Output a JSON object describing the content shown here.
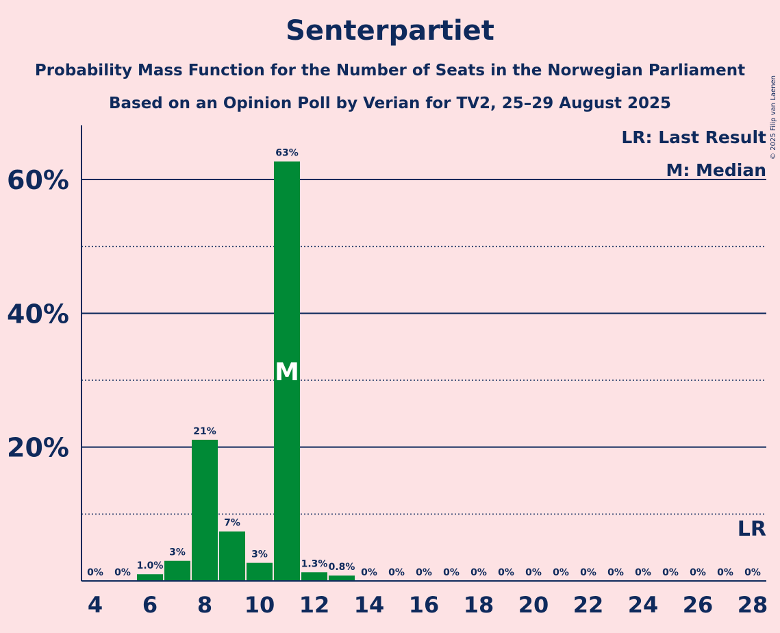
{
  "title": "Senterpartiet",
  "subtitle_1": "Probability Mass Function for the Number of Seats in the Norwegian Parliament",
  "subtitle_2": "Based on an Opinion Poll by Verian for TV2, 25–29 August 2025",
  "copyright": "© 2025 Filip van Laenen",
  "legend": {
    "last_result": "LR: Last Result",
    "median": "M: Median"
  },
  "colors": {
    "background": "#FDE2E4",
    "bar": "#008A36",
    "text": "#0F2A5C"
  },
  "chart_data": {
    "type": "bar",
    "x": [
      4,
      5,
      6,
      7,
      8,
      9,
      10,
      11,
      12,
      13,
      14,
      15,
      16,
      17,
      18,
      19,
      20,
      21,
      22,
      23,
      24,
      25,
      26,
      27,
      28
    ],
    "values": [
      0,
      0,
      1.0,
      3,
      21,
      7,
      3,
      63,
      1.3,
      0.8,
      0,
      0,
      0,
      0,
      0,
      0,
      0,
      0,
      0,
      0,
      0,
      0,
      0,
      0,
      0
    ],
    "bar_heights_estimated": [
      0,
      0,
      1.0,
      3.0,
      21.1,
      7.4,
      2.7,
      62.7,
      1.3,
      0.8,
      0,
      0,
      0,
      0,
      0,
      0,
      0,
      0,
      0,
      0,
      0,
      0,
      0,
      0,
      0
    ],
    "value_labels": [
      "0%",
      "0%",
      "1.0%",
      "3%",
      "21%",
      "7%",
      "3%",
      "63%",
      "1.3%",
      "0.8%",
      "0%",
      "0%",
      "0%",
      "0%",
      "0%",
      "0%",
      "0%",
      "0%",
      "0%",
      "0%",
      "0%",
      "0%",
      "0%",
      "0%",
      "0%"
    ],
    "x_tick_labels": [
      "4",
      "6",
      "8",
      "10",
      "12",
      "14",
      "16",
      "18",
      "20",
      "22",
      "24",
      "26",
      "28"
    ],
    "y_tick_labels": [
      "20%",
      "40%",
      "60%"
    ],
    "ylim": [
      0,
      68
    ],
    "median_seat": 11,
    "median_marker": "M",
    "last_result_seat": 28,
    "last_result_marker": "LR"
  }
}
